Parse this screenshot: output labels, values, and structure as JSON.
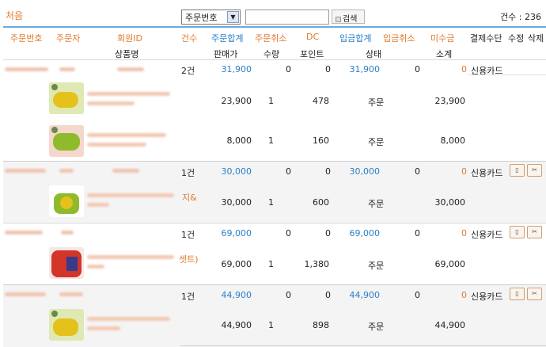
{
  "top": {
    "first_link": "처음",
    "search_select": "주문번호",
    "search_input_value": "",
    "search_button": "검색",
    "total_count": "건수 : 236"
  },
  "columns": {
    "order_no": "주문번호",
    "orderer": "주문자",
    "member_id": "회원ID",
    "product_name": "상품명",
    "count": "건수",
    "order_total": "주문합계",
    "sale_price": "판매가",
    "order_cancel": "주문취소",
    "quantity": "수량",
    "dc": "DC",
    "points": "포인트",
    "deposit_total": "입금합계",
    "status": "상태",
    "deposit_cancel": "입금취소",
    "unpaid": "미수금",
    "subtotal": "소계",
    "payment_method": "결제수단",
    "edit": "수정",
    "delete": "삭제"
  },
  "orders": [
    {
      "count": "2건",
      "order_total": "31,900",
      "order_cancel": "0",
      "dc": "0",
      "deposit_total": "31,900",
      "deposit_cancel": "0",
      "unpaid": "0",
      "payment": "신용카드",
      "items": [
        {
          "sale_price": "23,900",
          "qty": "1",
          "points": "478",
          "status": "주문",
          "subtotal": "23,900",
          "name_tail": ""
        },
        {
          "sale_price": "8,000",
          "qty": "1",
          "points": "160",
          "status": "주문",
          "subtotal": "8,000",
          "name_tail": ""
        }
      ]
    },
    {
      "count": "1건",
      "order_total": "30,000",
      "order_cancel": "0",
      "dc": "0",
      "deposit_total": "30,000",
      "deposit_cancel": "0",
      "unpaid": "0",
      "payment": "신용카드",
      "items": [
        {
          "sale_price": "30,000",
          "qty": "1",
          "points": "600",
          "status": "주문",
          "subtotal": "30,000",
          "name_tail": "지&"
        }
      ]
    },
    {
      "count": "1건",
      "order_total": "69,000",
      "order_cancel": "0",
      "dc": "0",
      "deposit_total": "69,000",
      "deposit_cancel": "0",
      "unpaid": "0",
      "payment": "신용카드",
      "items": [
        {
          "sale_price": "69,000",
          "qty": "1",
          "points": "1,380",
          "status": "주문",
          "subtotal": "69,000",
          "name_tail": "셋트)"
        }
      ]
    },
    {
      "count": "1건",
      "order_total": "44,900",
      "order_cancel": "0",
      "dc": "0",
      "deposit_total": "44,900",
      "deposit_cancel": "0",
      "unpaid": "0",
      "payment": "신용카드",
      "items": [
        {
          "sale_price": "44,900",
          "qty": "1",
          "points": "898",
          "status": "주문",
          "subtotal": "44,900",
          "name_tail": ""
        }
      ]
    }
  ],
  "icons": {
    "edit": "edit-icon",
    "delete": "scissors-icon"
  },
  "colors": {
    "header_orange": "#e07a2e",
    "header_blue": "#2a7fc8",
    "header_line": "#6aa9dd"
  }
}
